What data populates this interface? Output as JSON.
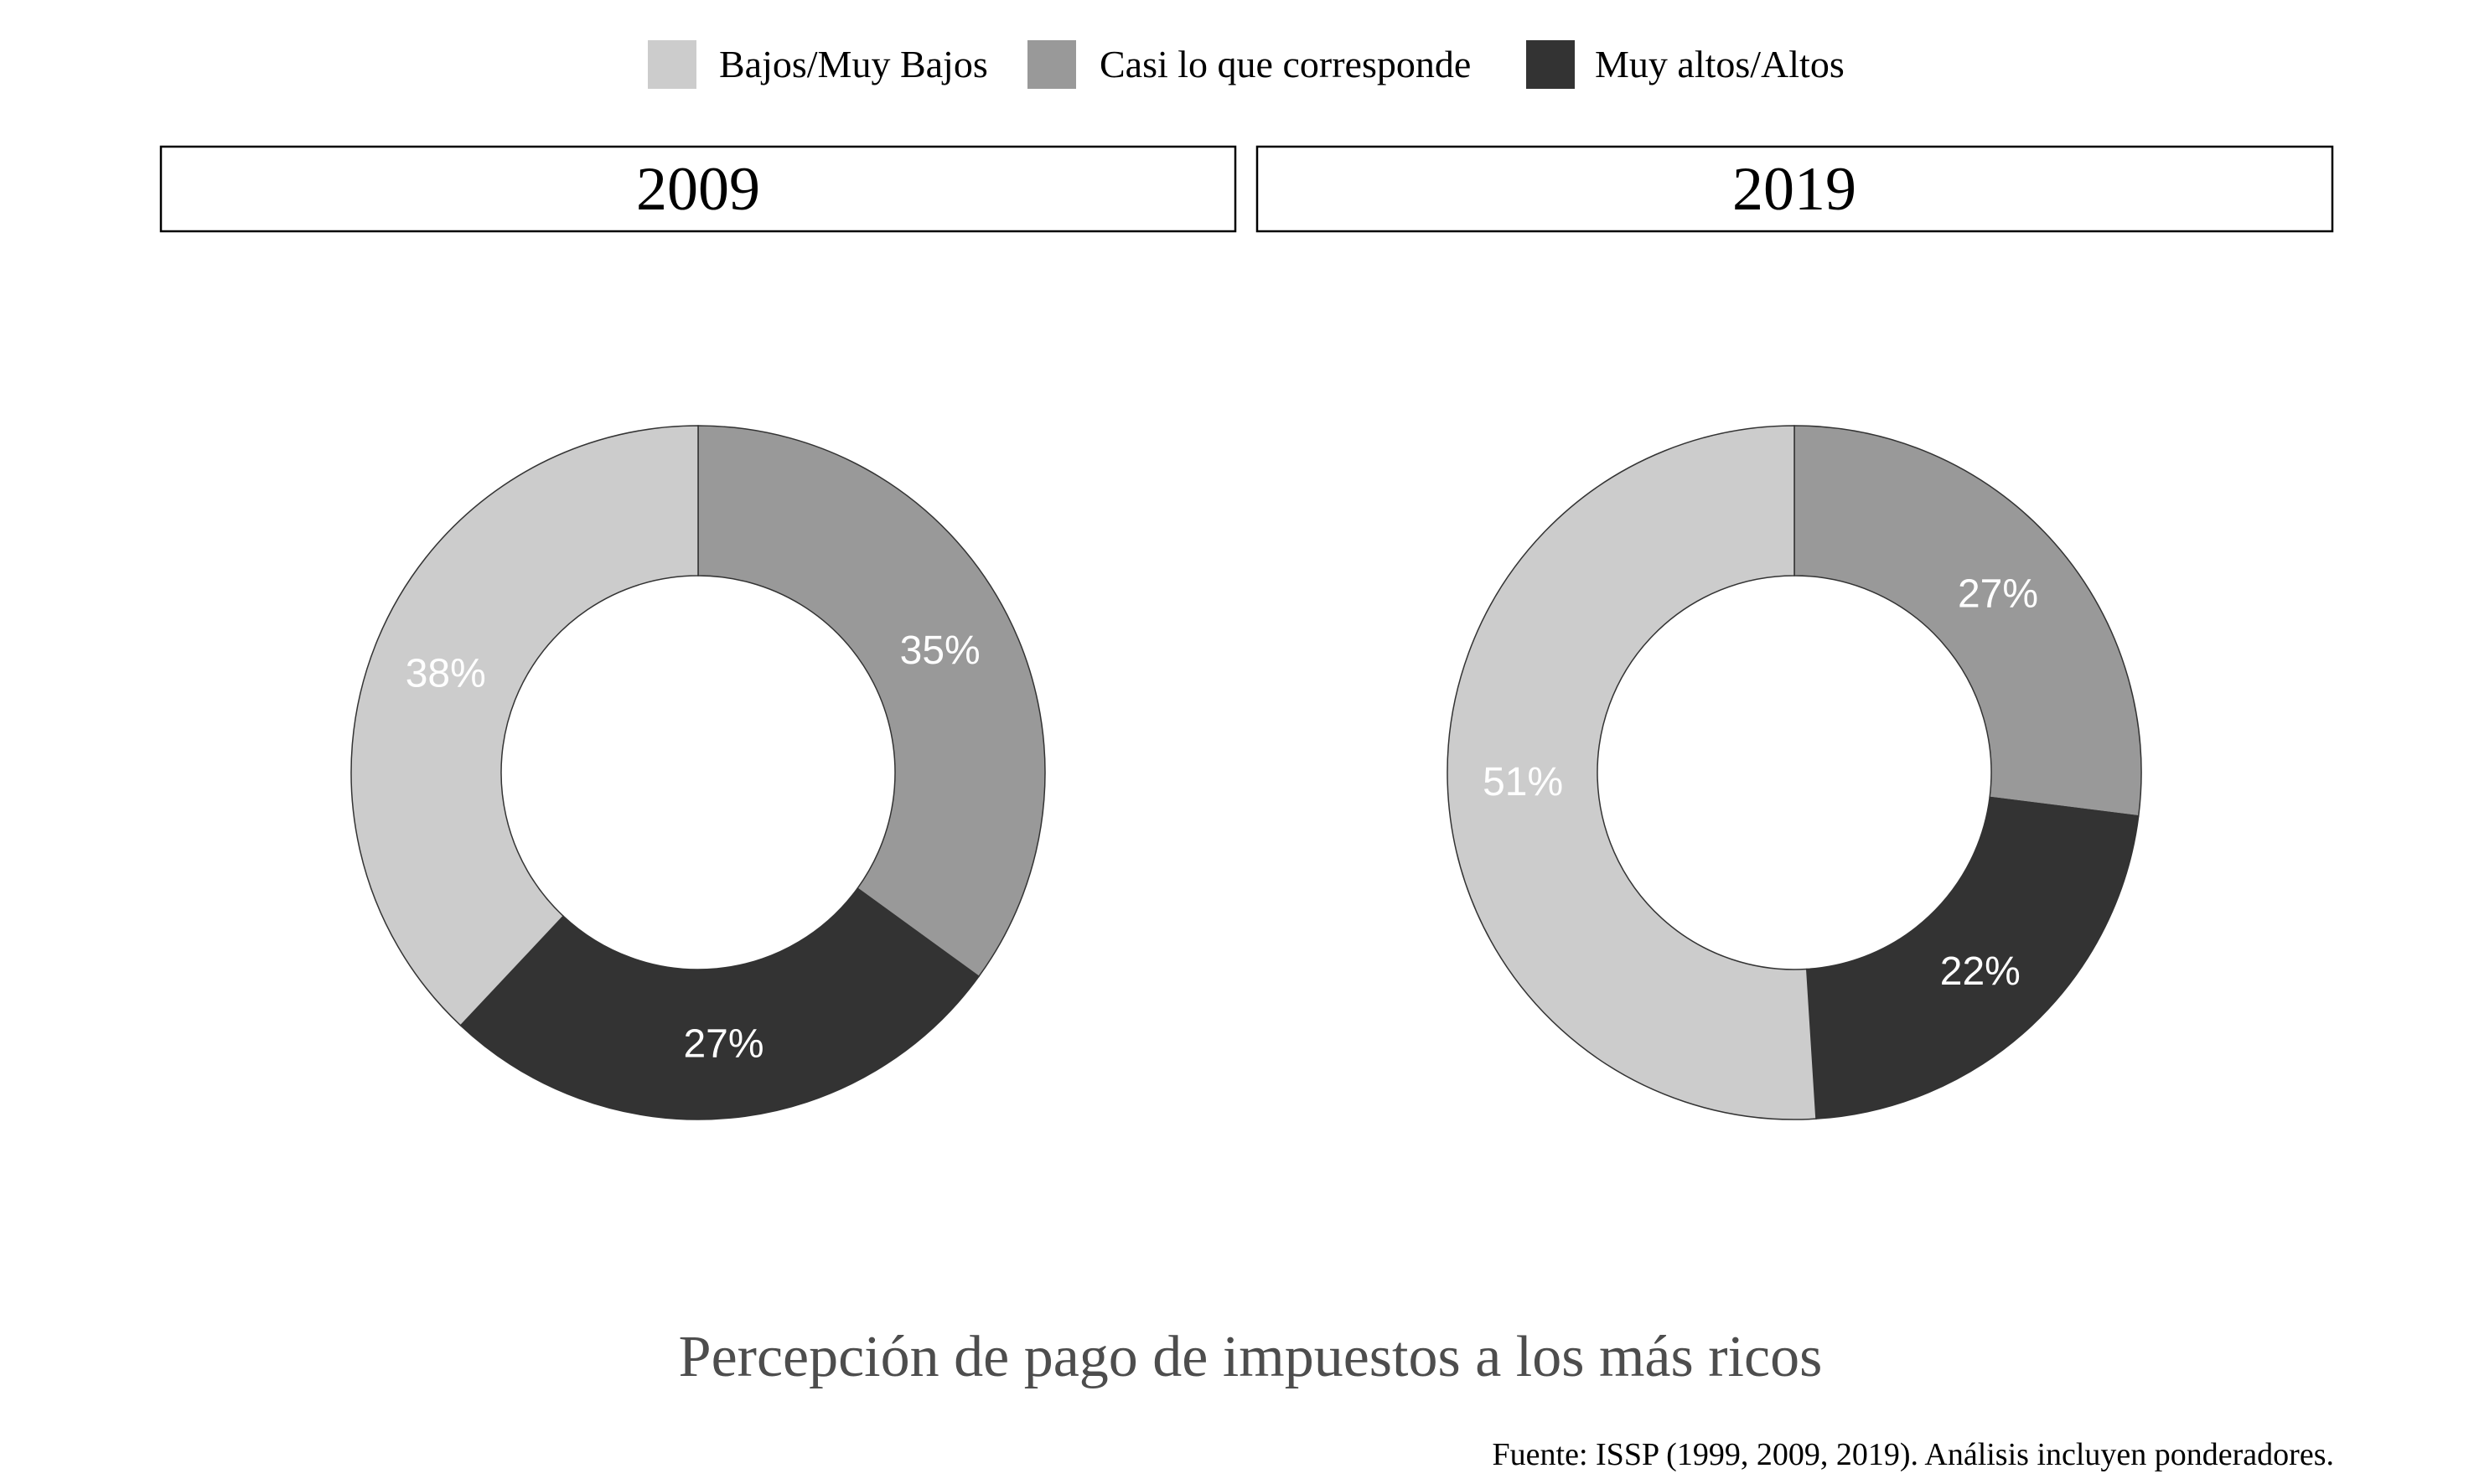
{
  "legend": {
    "placement": "top-center",
    "items": [
      {
        "label": "Bajos/Muy Bajos",
        "color": "#cccccc"
      },
      {
        "label": "Casi lo que corresponde",
        "color": "#999999"
      },
      {
        "label": "Muy altos/Altos",
        "color": "#333333"
      }
    ]
  },
  "chart_data": [
    {
      "type": "pie",
      "donut": true,
      "panel_title": "2009",
      "categories": [
        "Bajos/Muy Bajos",
        "Casi lo que corresponde",
        "Muy altos/Altos"
      ],
      "values": [
        38,
        35,
        27
      ],
      "labels": [
        "38%",
        "35%",
        "27%"
      ]
    },
    {
      "type": "pie",
      "donut": true,
      "panel_title": "2019",
      "categories": [
        "Bajos/Muy Bajos",
        "Casi lo que corresponde",
        "Muy altos/Altos"
      ],
      "values": [
        51,
        27,
        22
      ],
      "labels": [
        "51%",
        "27%",
        "22%"
      ]
    }
  ],
  "caption": "Percepción de pago de impuestos a los más ricos",
  "source": "Fuente: ISSP (1999, 2009, 2019). Análisis incluyen ponderadores.",
  "colors": {
    "label_text": "#ffffff",
    "caption_text": "#4d4d4d",
    "outline": "#333333"
  }
}
